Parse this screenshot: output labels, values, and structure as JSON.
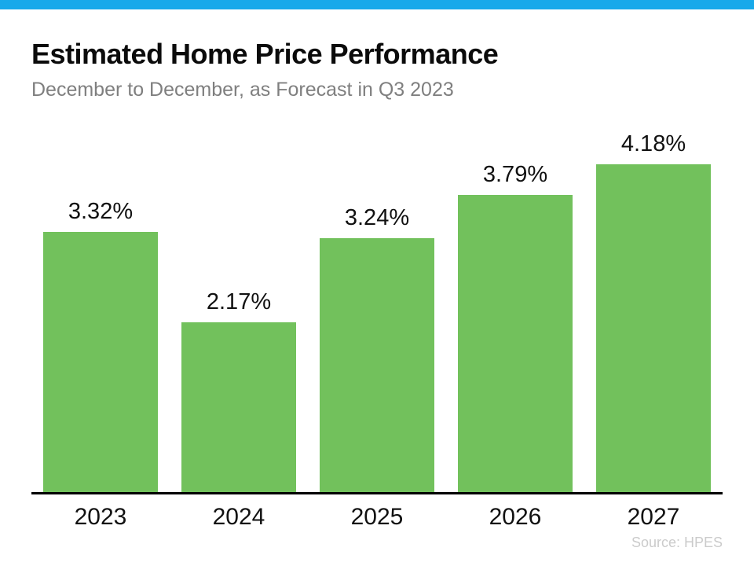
{
  "page": {
    "title": "Estimated Home Price Performance",
    "subtitle": "December to December, as Forecast in Q3 2023",
    "source": "Source: HPES"
  },
  "colors": {
    "accent_blue": "#17A9EA",
    "bar_green": "#72C15C",
    "subtitle_gray": "#7F7F7F",
    "source_gray": "#CBCBCB",
    "axis_black": "#000000"
  },
  "chart_data": {
    "type": "bar",
    "title": "Estimated Home Price Performance",
    "subtitle": "December to December, as Forecast in Q3 2023",
    "categories": [
      "2023",
      "2024",
      "2025",
      "2026",
      "2027"
    ],
    "values": [
      3.32,
      2.17,
      3.24,
      3.79,
      4.18
    ],
    "value_labels": [
      "3.32%",
      "2.17%",
      "3.24%",
      "3.79%",
      "4.18%"
    ],
    "xlabel": "",
    "ylabel": "",
    "ylim": [
      0,
      4.8
    ],
    "grid": false,
    "legend": false,
    "value_label_position": "above",
    "source": "Source: HPES"
  }
}
